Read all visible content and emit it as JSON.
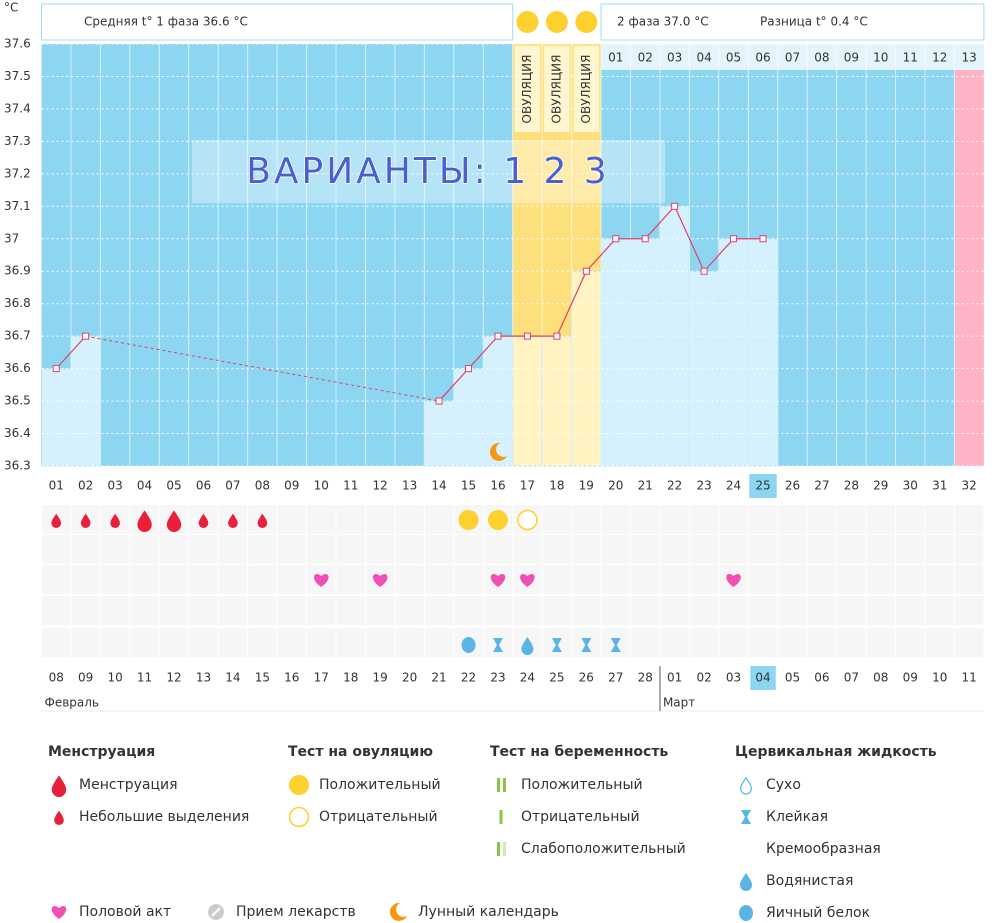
{
  "chart_data": {
    "type": "line",
    "unit": "°C",
    "header": {
      "phase1": "Средняя t° 1 фаза 36.6 °C",
      "phase2": "2 фаза 37.0 °C",
      "diff": "Разница t° 0.4 °C"
    },
    "watermark": "ВАРИАНТЫ: 1 2 3",
    "categories": [
      "01",
      "02",
      "03",
      "04",
      "05",
      "06",
      "07",
      "08",
      "09",
      "10",
      "11",
      "12",
      "13",
      "14",
      "15",
      "16",
      "17",
      "18",
      "19",
      "20",
      "21",
      "22",
      "23",
      "24",
      "25",
      "26",
      "27",
      "28",
      "29",
      "30",
      "31",
      "32"
    ],
    "series": [
      {
        "name": "t°",
        "color": "#e23d6b",
        "values": [
          36.6,
          36.7,
          null,
          null,
          null,
          null,
          null,
          null,
          null,
          null,
          null,
          null,
          null,
          36.5,
          36.6,
          36.7,
          36.7,
          36.7,
          36.9,
          37.0,
          37.0,
          37.1,
          36.9,
          37.0,
          37.0,
          null,
          null,
          null,
          null,
          null,
          null,
          null
        ]
      }
    ],
    "ylim": [
      36.3,
      37.6
    ],
    "yticks": [
      36.3,
      36.4,
      36.5,
      36.6,
      36.7,
      36.8,
      36.9,
      37,
      37.1,
      37.2,
      37.3,
      37.4,
      37.5,
      37.6
    ],
    "grid": true,
    "ovulation_days": [
      "17",
      "18",
      "19"
    ],
    "ovulation_label": "ОВУЛЯЦИЯ",
    "phase2": {
      "start": "20",
      "labels": [
        "01",
        "02",
        "03",
        "04",
        "05",
        "06",
        "07",
        "08",
        "09",
        "10",
        "11",
        "12",
        "13"
      ]
    },
    "next_cycle_day": "32",
    "next_cycle_color": "#ffb3c6",
    "today": "25",
    "dates": [
      "08",
      "09",
      "10",
      "11",
      "12",
      "13",
      "14",
      "15",
      "16",
      "17",
      "18",
      "19",
      "20",
      "21",
      "22",
      "23",
      "24",
      "25",
      "26",
      "27",
      "28",
      "01",
      "02",
      "03",
      "04",
      "05",
      "06",
      "07",
      "08",
      "09",
      "10",
      "11"
    ],
    "weekend": [
      false,
      false,
      false,
      true,
      true,
      false,
      false,
      false,
      false,
      false,
      true,
      true,
      false,
      false,
      false,
      false,
      false,
      true,
      true,
      false,
      false,
      false,
      false,
      false,
      false,
      true,
      false,
      false,
      false,
      false,
      false,
      true
    ],
    "months": [
      {
        "label": "Февраль",
        "start": "01"
      },
      {
        "label": "Март",
        "start": "22"
      }
    ],
    "legend": {
      "groups": [
        {
          "title": "Менструация",
          "items": [
            {
              "label": "Менструация",
              "days": [
                "04",
                "05"
              ]
            },
            {
              "label": "Небольшие выделения",
              "days": [
                "01",
                "02",
                "03",
                "06",
                "07",
                "08"
              ]
            }
          ]
        },
        {
          "title": "Тест на овуляцию",
          "items": [
            {
              "label": "Положительный",
              "days": [
                "15",
                "16"
              ]
            },
            {
              "label": "Отрицательный",
              "days": [
                "17"
              ]
            }
          ]
        },
        {
          "title": "Тест на беременность",
          "items": [
            {
              "label": "Положительный",
              "days": []
            },
            {
              "label": "Отрицательный",
              "days": []
            },
            {
              "label": "Слабоположительный",
              "days": []
            }
          ]
        },
        {
          "title": "Цервикальная жидкость",
          "items": [
            {
              "label": "Сухо",
              "days": []
            },
            {
              "label": "Клейкая",
              "days": [
                "16",
                "18",
                "19",
                "20"
              ]
            },
            {
              "label": "Кремообразная",
              "days": []
            },
            {
              "label": "Водянистая",
              "days": [
                "17"
              ]
            },
            {
              "label": "Яичный белок",
              "days": [
                "15"
              ]
            }
          ]
        }
      ],
      "extra": [
        {
          "label": "Половой акт",
          "days": [
            "10",
            "12",
            "16",
            "17",
            "24"
          ]
        },
        {
          "label": "Прием лекарств",
          "days": []
        },
        {
          "label": "Лунный календарь",
          "days": [
            "16"
          ]
        }
      ]
    }
  }
}
